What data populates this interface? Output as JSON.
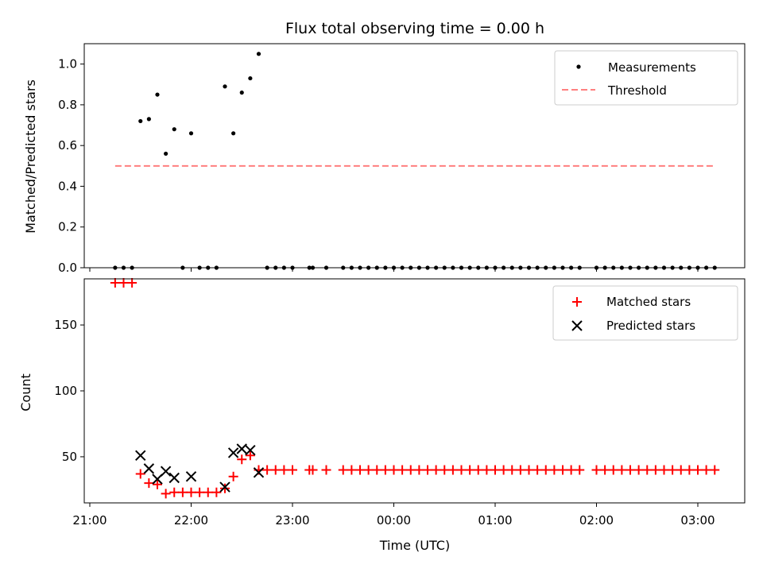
{
  "chart_data": [
    {
      "type": "scatter",
      "title": "Flux total observing time = 0.00 h",
      "xlabel": "",
      "ylabel": "Matched/Predicted stars",
      "xlim": [
        "21:00",
        "03:30"
      ],
      "ylim": [
        0,
        1.1
      ],
      "yticks": [
        0.0,
        0.2,
        0.4,
        0.6,
        0.8,
        1.0
      ],
      "ytick_labels": [
        "0.0",
        "0.2",
        "0.4",
        "0.6",
        "0.8",
        "1.0"
      ],
      "legend_placement": "upper right",
      "series": [
        {
          "name": "Measurements",
          "kind": "points",
          "color": "#000000",
          "x": [
            "21:15",
            "21:20",
            "21:25",
            "21:30",
            "21:35",
            "21:40",
            "21:45",
            "21:50",
            "21:55",
            "22:00",
            "22:05",
            "22:10",
            "22:15",
            "22:20",
            "22:25",
            "22:30",
            "22:35",
            "22:40",
            "22:45",
            "22:50",
            "22:55",
            "23:00",
            "23:10",
            "23:12",
            "23:20",
            "23:30",
            "23:35",
            "23:40",
            "23:45",
            "23:50",
            "23:55",
            "00:00",
            "00:05",
            "00:10",
            "00:15",
            "00:20",
            "00:25",
            "00:30",
            "00:35",
            "00:40",
            "00:45",
            "00:50",
            "00:55",
            "01:00",
            "01:05",
            "01:10",
            "01:15",
            "01:20",
            "01:25",
            "01:30",
            "01:35",
            "01:40",
            "01:45",
            "01:50",
            "02:00",
            "02:05",
            "02:10",
            "02:15",
            "02:20",
            "02:25",
            "02:30",
            "02:35",
            "02:40",
            "02:45",
            "02:50",
            "02:55",
            "03:00",
            "03:05",
            "03:10"
          ],
          "y": [
            0,
            0,
            0,
            0.72,
            0.73,
            0.85,
            0.56,
            0.68,
            0,
            0.66,
            0,
            0,
            0,
            0.89,
            0.66,
            0.86,
            0.93,
            1.05,
            0,
            0,
            0,
            0,
            0,
            0,
            0,
            0,
            0,
            0,
            0,
            0,
            0,
            0,
            0,
            0,
            0,
            0,
            0,
            0,
            0,
            0,
            0,
            0,
            0,
            0,
            0,
            0,
            0,
            0,
            0,
            0,
            0,
            0,
            0,
            0,
            0,
            0,
            0,
            0,
            0,
            0,
            0,
            0,
            0,
            0,
            0,
            0,
            0,
            0,
            0
          ]
        },
        {
          "name": "Threshold",
          "kind": "dashed-line",
          "color": "#ff7f7f",
          "x": [
            "21:15",
            "03:10"
          ],
          "y": [
            0.5,
            0.5
          ]
        }
      ]
    },
    {
      "type": "scatter",
      "title": "",
      "xlabel": "Time (UTC)",
      "ylabel": "Count",
      "xlim": [
        "21:00",
        "03:30"
      ],
      "ylim": [
        15,
        185
      ],
      "yticks": [
        50,
        100,
        150
      ],
      "ytick_labels": [
        "50",
        "100",
        "150"
      ],
      "xticks": [
        "21:00",
        "22:00",
        "23:00",
        "00:00",
        "01:00",
        "02:00",
        "03:00"
      ],
      "legend_placement": "upper right",
      "series": [
        {
          "name": "Matched stars",
          "marker": "plus",
          "color": "#ff0000",
          "x": [
            "21:15",
            "21:20",
            "21:25",
            "21:30",
            "21:35",
            "21:40",
            "21:45",
            "21:50",
            "21:55",
            "22:00",
            "22:05",
            "22:10",
            "22:15",
            "22:20",
            "22:25",
            "22:30",
            "22:35",
            "22:40",
            "22:45",
            "22:50",
            "22:55",
            "23:00",
            "23:10",
            "23:12",
            "23:20",
            "23:30",
            "23:35",
            "23:40",
            "23:45",
            "23:50",
            "23:55",
            "00:00",
            "00:05",
            "00:10",
            "00:15",
            "00:20",
            "00:25",
            "00:30",
            "00:35",
            "00:40",
            "00:45",
            "00:50",
            "00:55",
            "01:00",
            "01:05",
            "01:10",
            "01:15",
            "01:20",
            "01:25",
            "01:30",
            "01:35",
            "01:40",
            "01:45",
            "01:50",
            "02:00",
            "02:05",
            "02:10",
            "02:15",
            "02:20",
            "02:25",
            "02:30",
            "02:35",
            "02:40",
            "02:45",
            "02:50",
            "02:55",
            "03:00",
            "03:05",
            "03:10"
          ],
          "y": [
            182,
            182,
            182,
            37,
            30,
            29,
            22,
            23,
            23,
            23,
            23,
            23,
            23,
            26,
            35,
            48,
            51,
            40,
            40,
            40,
            40,
            40,
            40,
            40,
            40,
            40,
            40,
            40,
            40,
            40,
            40,
            40,
            40,
            40,
            40,
            40,
            40,
            40,
            40,
            40,
            40,
            40,
            40,
            40,
            40,
            40,
            40,
            40,
            40,
            40,
            40,
            40,
            40,
            40,
            40,
            40,
            40,
            40,
            40,
            40,
            40,
            40,
            40,
            40,
            40,
            40,
            40,
            40,
            40
          ]
        },
        {
          "name": "Predicted stars",
          "marker": "x",
          "color": "#000000",
          "x": [
            "21:30",
            "21:35",
            "21:40",
            "21:45",
            "21:50",
            "22:00",
            "22:20",
            "22:25",
            "22:30",
            "22:35",
            "22:40"
          ],
          "y": [
            51,
            41,
            33,
            39,
            34,
            35,
            27,
            53,
            56,
            55,
            38
          ]
        }
      ]
    }
  ]
}
